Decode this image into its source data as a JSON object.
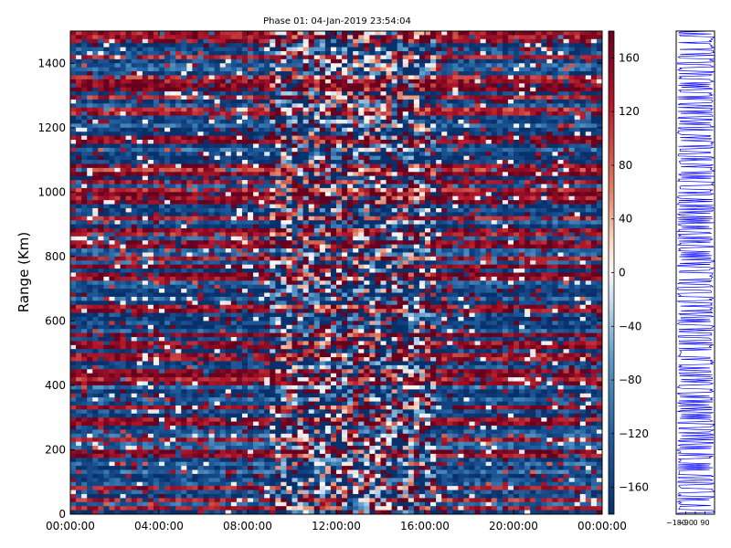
{
  "chart_data": {
    "type": "heatmap",
    "title": "Phase 01: 04-Jan-2019 23:54:04",
    "ylabel": "Range (Km)",
    "xlabel": "",
    "x_tick_labels": [
      "00:00:00",
      "04:00:00",
      "08:00:00",
      "12:00:00",
      "16:00:00",
      "20:00:00",
      "00:00:00"
    ],
    "xlim_hours": [
      0,
      24
    ],
    "y_ticks": [
      0,
      200,
      400,
      600,
      800,
      1000,
      1200,
      1400
    ],
    "ylim": [
      0,
      1500
    ],
    "colorbar": {
      "colormap": "RdBu_r",
      "range": [
        -180,
        180
      ],
      "ticks": [
        -160,
        -120,
        -80,
        -40,
        0,
        40,
        80,
        120,
        160
      ],
      "low_color": "#08306b",
      "mid_color": "#f7f7f7",
      "high_color": "#67001f"
    },
    "side_profile": {
      "line_color": "#0000ff",
      "x_tick_labels": [
        "-180",
        "-90",
        "0",
        "90"
      ]
    }
  }
}
